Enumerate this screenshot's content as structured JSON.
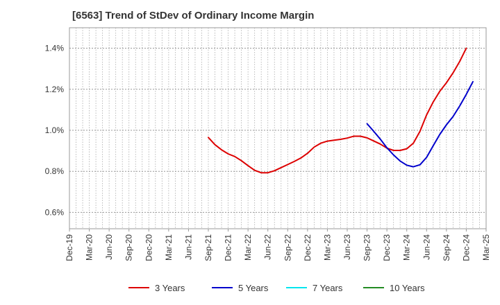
{
  "title": "[6563]  Trend of StDev of Ordinary Income Margin",
  "chart_data": {
    "type": "line",
    "title": "[6563]  Trend of StDev of Ordinary Income Margin",
    "xlabel": "",
    "ylabel": "",
    "x_ticks": [
      "Dec-19",
      "Mar-20",
      "Jun-20",
      "Sep-20",
      "Dec-20",
      "Mar-21",
      "Jun-21",
      "Sep-21",
      "Dec-21",
      "Mar-22",
      "Jun-22",
      "Sep-22",
      "Dec-22",
      "Mar-23",
      "Jun-23",
      "Sep-23",
      "Dec-23",
      "Mar-24",
      "Jun-24",
      "Sep-24",
      "Dec-24",
      "Mar-25"
    ],
    "y_ticks": [
      "0.6%",
      "0.8%",
      "1.0%",
      "1.2%",
      "1.4%"
    ],
    "y_tick_values": [
      0.6,
      0.8,
      1.0,
      1.2,
      1.4
    ],
    "ylim": [
      0.52,
      1.5
    ],
    "grid": true,
    "legend_position": "bottom",
    "series": [
      {
        "name": "3 Years",
        "color": "#dd0000",
        "points": [
          [
            "Sep-21",
            0.965
          ],
          [
            "Oct-21",
            0.93
          ],
          [
            "Nov-21",
            0.905
          ],
          [
            "Dec-21",
            0.885
          ],
          [
            "Jan-22",
            0.872
          ],
          [
            "Feb-22",
            0.852
          ],
          [
            "Mar-22",
            0.828
          ],
          [
            "Apr-22",
            0.805
          ],
          [
            "May-22",
            0.793
          ],
          [
            "Jun-22",
            0.793
          ],
          [
            "Jul-22",
            0.803
          ],
          [
            "Aug-22",
            0.818
          ],
          [
            "Sep-22",
            0.833
          ],
          [
            "Oct-22",
            0.848
          ],
          [
            "Nov-22",
            0.865
          ],
          [
            "Dec-22",
            0.888
          ],
          [
            "Jan-23",
            0.918
          ],
          [
            "Feb-23",
            0.937
          ],
          [
            "Mar-23",
            0.947
          ],
          [
            "Apr-23",
            0.952
          ],
          [
            "May-23",
            0.956
          ],
          [
            "Jun-23",
            0.962
          ],
          [
            "Jul-23",
            0.971
          ],
          [
            "Aug-23",
            0.971
          ],
          [
            "Sep-23",
            0.963
          ],
          [
            "Oct-23",
            0.948
          ],
          [
            "Nov-23",
            0.933
          ],
          [
            "Dec-23",
            0.913
          ],
          [
            "Jan-24",
            0.902
          ],
          [
            "Feb-24",
            0.902
          ],
          [
            "Mar-24",
            0.91
          ],
          [
            "Apr-24",
            0.937
          ],
          [
            "May-24",
            0.995
          ],
          [
            "Jun-24",
            1.075
          ],
          [
            "Jul-24",
            1.138
          ],
          [
            "Aug-24",
            1.19
          ],
          [
            "Sep-24",
            1.232
          ],
          [
            "Oct-24",
            1.28
          ],
          [
            "Nov-24",
            1.335
          ],
          [
            "Dec-24",
            1.4
          ]
        ]
      },
      {
        "name": "5 Years",
        "color": "#0000cc",
        "points": [
          [
            "Sep-23",
            1.032
          ],
          [
            "Oct-23",
            0.995
          ],
          [
            "Nov-23",
            0.957
          ],
          [
            "Dec-23",
            0.915
          ],
          [
            "Jan-24",
            0.88
          ],
          [
            "Feb-24",
            0.85
          ],
          [
            "Mar-24",
            0.83
          ],
          [
            "Apr-24",
            0.822
          ],
          [
            "May-24",
            0.832
          ],
          [
            "Jun-24",
            0.868
          ],
          [
            "Jul-24",
            0.925
          ],
          [
            "Aug-24",
            0.98
          ],
          [
            "Sep-24",
            1.027
          ],
          [
            "Oct-24",
            1.067
          ],
          [
            "Nov-24",
            1.118
          ],
          [
            "Dec-24",
            1.175
          ],
          [
            "Jan-25",
            1.237
          ]
        ]
      },
      {
        "name": "7 Years",
        "color": "#00e5ee",
        "points": []
      },
      {
        "name": "10 Years",
        "color": "#228b22",
        "points": []
      }
    ]
  }
}
